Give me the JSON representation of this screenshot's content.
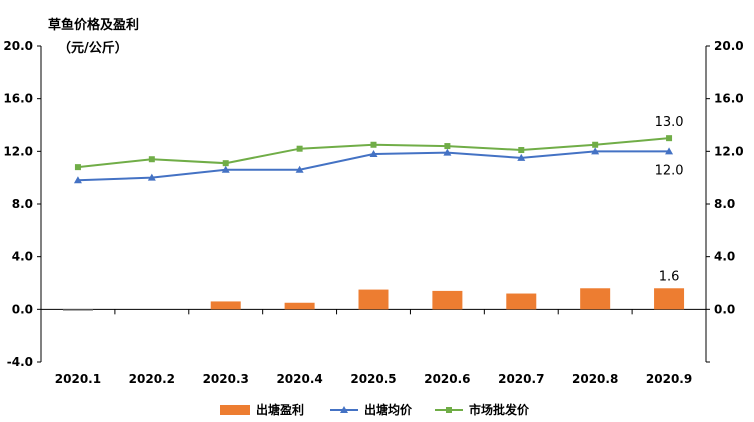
{
  "chart_data": {
    "type": "bar+line",
    "title": "草鱼价格及盈利",
    "unit": "（元/公斤）",
    "categories": [
      "2020.1",
      "2020.2",
      "2020.3",
      "2020.4",
      "2020.5",
      "2020.6",
      "2020.7",
      "2020.8",
      "2020.9"
    ],
    "ylim": [
      -4,
      20
    ],
    "yticks": [
      "-4.0",
      "0.0",
      "4.0",
      "8.0",
      "12.0",
      "16.0",
      "20.0"
    ],
    "y2ticks": [
      "",
      "0.0",
      "4.0",
      "8.0",
      "12.0",
      "16.0",
      "20.0"
    ],
    "series": [
      {
        "name": "出塘盈利",
        "type": "bar",
        "color": "#ED7D31",
        "negative_color": "#7F7F7F",
        "values": [
          -0.1,
          0,
          0.6,
          0.5,
          1.5,
          1.4,
          1.2,
          1.6,
          1.6
        ]
      },
      {
        "name": "出塘均价",
        "type": "line",
        "marker": "triangle",
        "color": "#4472C4",
        "values": [
          9.8,
          10.0,
          10.6,
          10.6,
          11.8,
          11.9,
          11.5,
          12.0,
          12.0
        ]
      },
      {
        "name": "市场批发价",
        "type": "line",
        "marker": "square",
        "color": "#70AD47",
        "values": [
          10.8,
          11.4,
          11.1,
          12.2,
          12.5,
          12.4,
          12.1,
          12.5,
          13.0
        ]
      }
    ],
    "data_labels": [
      "1.6",
      "12.0",
      "13.0"
    ],
    "legend": "bottom",
    "grid": false
  }
}
